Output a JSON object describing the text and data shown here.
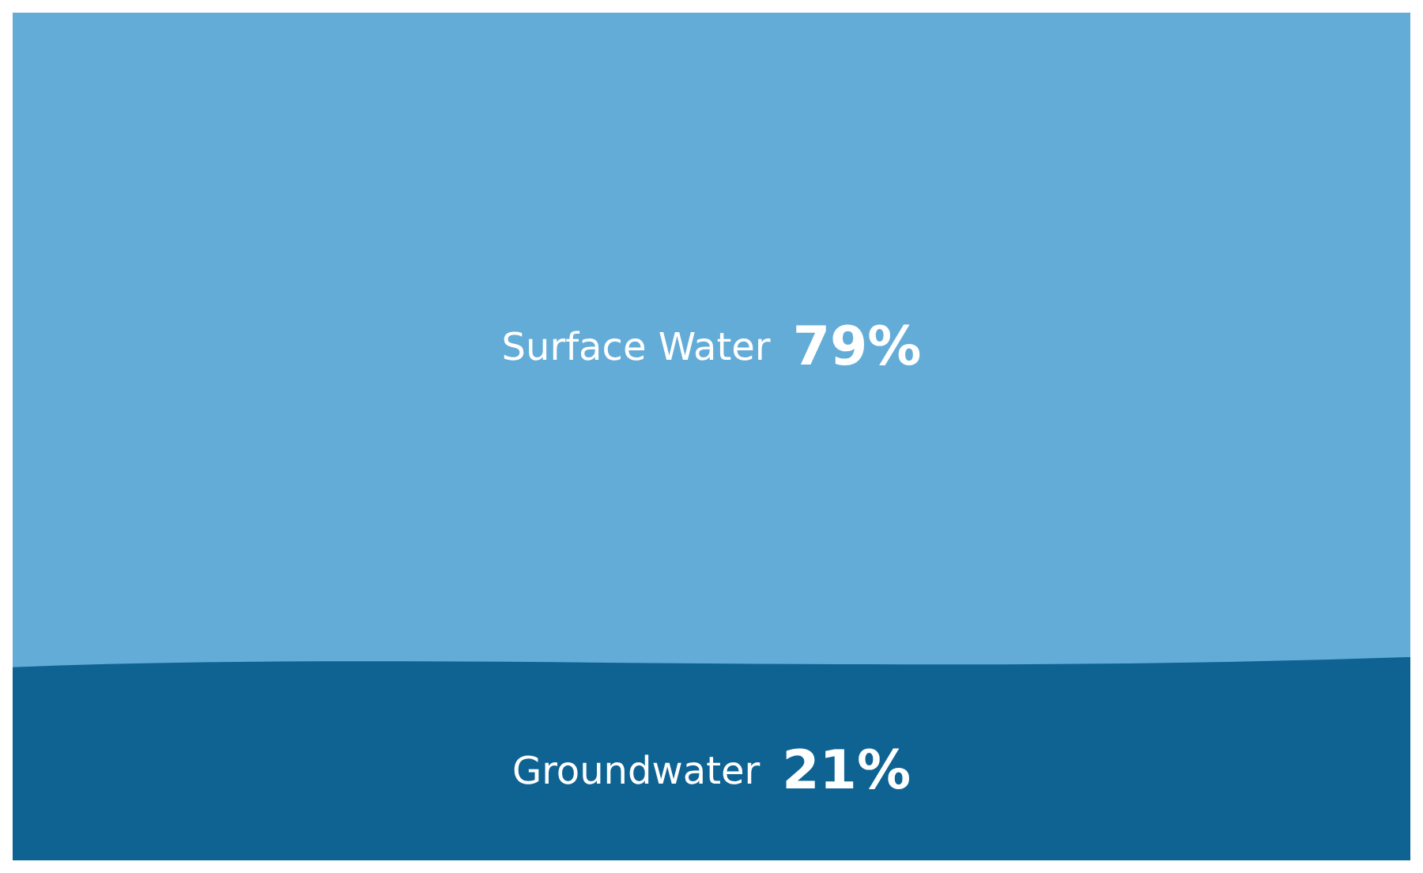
{
  "chart_data": {
    "type": "other",
    "categories": [
      "Surface Water",
      "Groundwater"
    ],
    "values": [
      79,
      21
    ],
    "value_labels": [
      "79%",
      "21%"
    ],
    "colors": [
      "#64acd8",
      "#0e6393"
    ]
  }
}
